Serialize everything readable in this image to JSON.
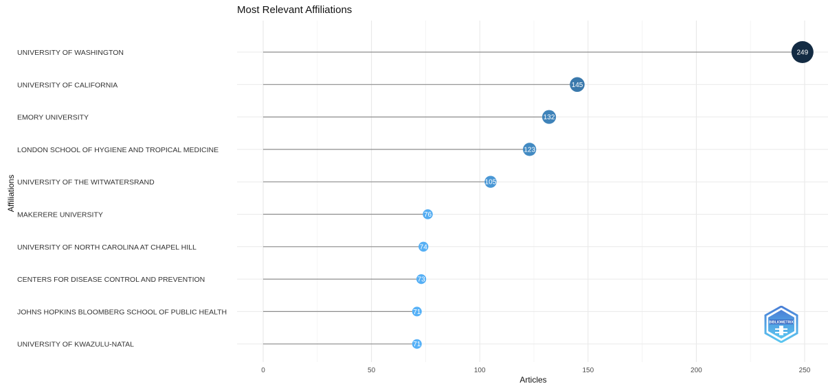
{
  "chart_data": {
    "type": "lollipop",
    "title": "Most Relevant Affiliations",
    "xlabel": "Articles",
    "ylabel": "Affiliations",
    "xlim": [
      0,
      250
    ],
    "x_ticks": [
      0,
      50,
      100,
      150,
      200,
      250
    ],
    "grid": true,
    "legend": "none",
    "categories": [
      "UNIVERSITY OF WASHINGTON",
      "UNIVERSITY OF CALIFORNIA",
      "EMORY UNIVERSITY",
      "LONDON SCHOOL OF HYGIENE AND TROPICAL MEDICINE",
      "UNIVERSITY OF THE WITWATERSRAND",
      "MAKERERE UNIVERSITY",
      "UNIVERSITY OF NORTH CAROLINA AT CHAPEL HILL",
      "CENTERS FOR DISEASE CONTROL AND PREVENTION",
      "JOHNS HOPKINS BLOOMBERG SCHOOL OF PUBLIC HEALTH",
      "UNIVERSITY OF KWAZULU-NATAL"
    ],
    "values": [
      249,
      145,
      132,
      123,
      105,
      76,
      74,
      73,
      71,
      71
    ],
    "color_scale": {
      "low": "#56b1f7",
      "high": "#132b43"
    }
  },
  "logo": {
    "text": "BIBLIOMETRIX",
    "icon": "bibliometrix-hexagon-logo"
  }
}
